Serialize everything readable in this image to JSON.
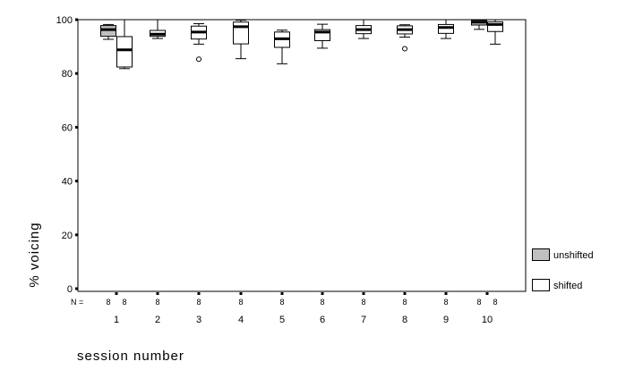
{
  "chart_data": {
    "type": "boxplot",
    "xlabel": "session number",
    "ylabel": "% voicing",
    "ylim": [
      0,
      100
    ],
    "yticks": [
      0,
      20,
      40,
      60,
      80,
      100
    ],
    "n_label": "N =",
    "categories": [
      "1",
      "2",
      "3",
      "4",
      "5",
      "6",
      "7",
      "8",
      "9",
      "10"
    ],
    "legend_position": "bottom-right",
    "series": [
      {
        "name": "unshifted",
        "color": "#c0c0c0",
        "n": [
          "8",
          "",
          "",
          "",
          "",
          "",
          "",
          "",
          "",
          "8"
        ],
        "boxes": [
          {
            "category": "1",
            "min": 92.7,
            "q1": 93.8,
            "median": 96.3,
            "q3": 97.8,
            "max": 98.2,
            "outliers": []
          },
          {
            "category": "10",
            "min": 96.4,
            "q1": 98.0,
            "median": 99.1,
            "q3": 99.8,
            "max": 100,
            "outliers": []
          }
        ]
      },
      {
        "name": "shifted",
        "color": "#ffffff",
        "n": [
          "8",
          "8",
          "8",
          "8",
          "8",
          "8",
          "8",
          "8",
          "8",
          "8"
        ],
        "boxes": [
          {
            "category": "1",
            "min": 81.8,
            "q1": 82.4,
            "median": 88.8,
            "q3": 93.7,
            "max": 100,
            "outliers": []
          },
          {
            "category": "2",
            "min": 93.0,
            "q1": 93.8,
            "median": 94.6,
            "q3": 96.0,
            "max": 100,
            "outliers": []
          },
          {
            "category": "3",
            "min": 90.9,
            "q1": 92.8,
            "median": 95.4,
            "q3": 97.6,
            "max": 98.5,
            "outliers": [
              85.3
            ]
          },
          {
            "category": "4",
            "min": 85.5,
            "q1": 91.0,
            "median": 97.4,
            "q3": 99.1,
            "max": 99.8,
            "outliers": []
          },
          {
            "category": "5",
            "min": 83.6,
            "q1": 89.7,
            "median": 92.9,
            "q3": 95.4,
            "max": 96.1,
            "outliers": []
          },
          {
            "category": "6",
            "min": 89.4,
            "q1": 92.2,
            "median": 95.4,
            "q3": 96.3,
            "max": 98.3,
            "outliers": []
          },
          {
            "category": "7",
            "min": 93.0,
            "q1": 94.8,
            "median": 96.3,
            "q3": 97.8,
            "max": 100,
            "outliers": []
          },
          {
            "category": "8",
            "min": 93.5,
            "q1": 94.7,
            "median": 96.3,
            "q3": 97.7,
            "max": 98.1,
            "outliers": [
              89.2
            ]
          },
          {
            "category": "9",
            "min": 93.0,
            "q1": 94.9,
            "median": 97.1,
            "q3": 98.2,
            "max": 100,
            "outliers": []
          },
          {
            "category": "10",
            "min": 90.9,
            "q1": 95.6,
            "median": 98.2,
            "q3": 99.2,
            "max": 100,
            "outliers": []
          }
        ]
      }
    ]
  }
}
